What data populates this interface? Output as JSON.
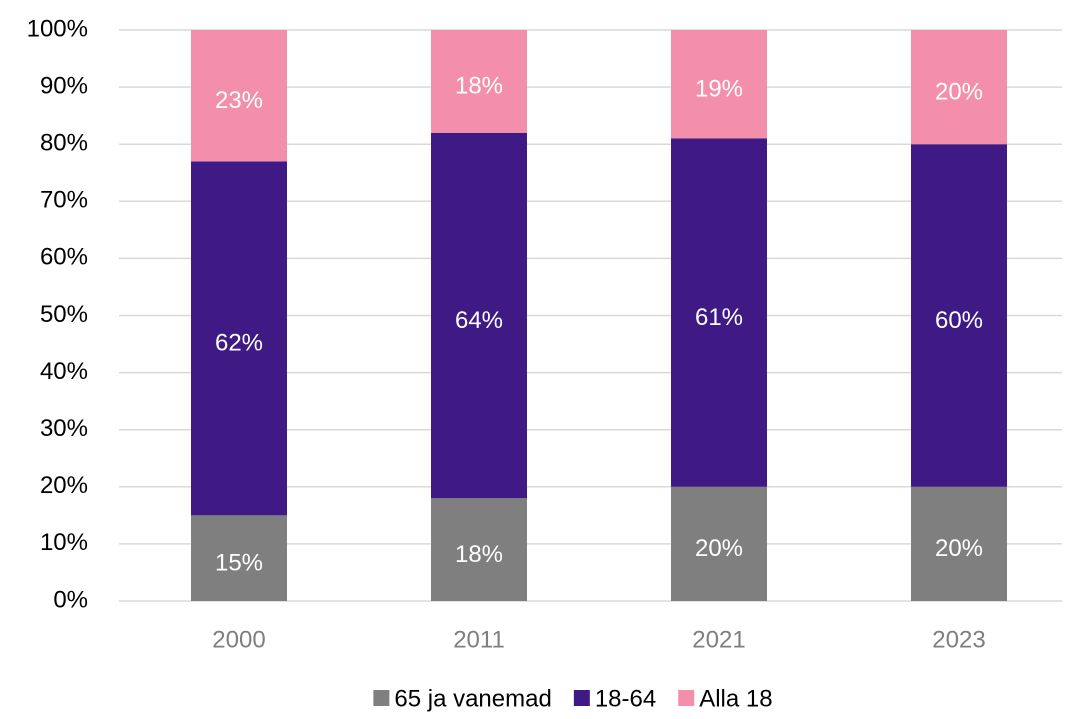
{
  "chart_data": {
    "type": "stacked_bar",
    "categories": [
      "2000",
      "2011",
      "2021",
      "2023"
    ],
    "series": [
      {
        "name": "65 ja vanemad",
        "color": "#7f7f7f",
        "values": [
          15,
          18,
          20,
          20
        ],
        "value_labels": [
          "15%",
          "18%",
          "20%",
          "20%"
        ]
      },
      {
        "name": "18-64",
        "color": "#3f1a84",
        "values": [
          62,
          64,
          61,
          60
        ],
        "value_labels": [
          "62%",
          "64%",
          "61%",
          "60%"
        ]
      },
      {
        "name": "Alla 18",
        "color": "#f48fab",
        "values": [
          23,
          18,
          19,
          20
        ],
        "value_labels": [
          "23%",
          "18%",
          "19%",
          "20%"
        ]
      }
    ],
    "ylim": [
      0,
      100
    ],
    "yticks": [
      {
        "value": 0,
        "label": "0%"
      },
      {
        "value": 10,
        "label": "10%"
      },
      {
        "value": 20,
        "label": "20%"
      },
      {
        "value": 30,
        "label": "30%"
      },
      {
        "value": 40,
        "label": "40%"
      },
      {
        "value": 50,
        "label": "50%"
      },
      {
        "value": 60,
        "label": "60%"
      },
      {
        "value": 70,
        "label": "70%"
      },
      {
        "value": 80,
        "label": "80%"
      },
      {
        "value": 90,
        "label": "90%"
      },
      {
        "value": 100,
        "label": "100%"
      }
    ],
    "grid": true,
    "legend": "bottom"
  }
}
